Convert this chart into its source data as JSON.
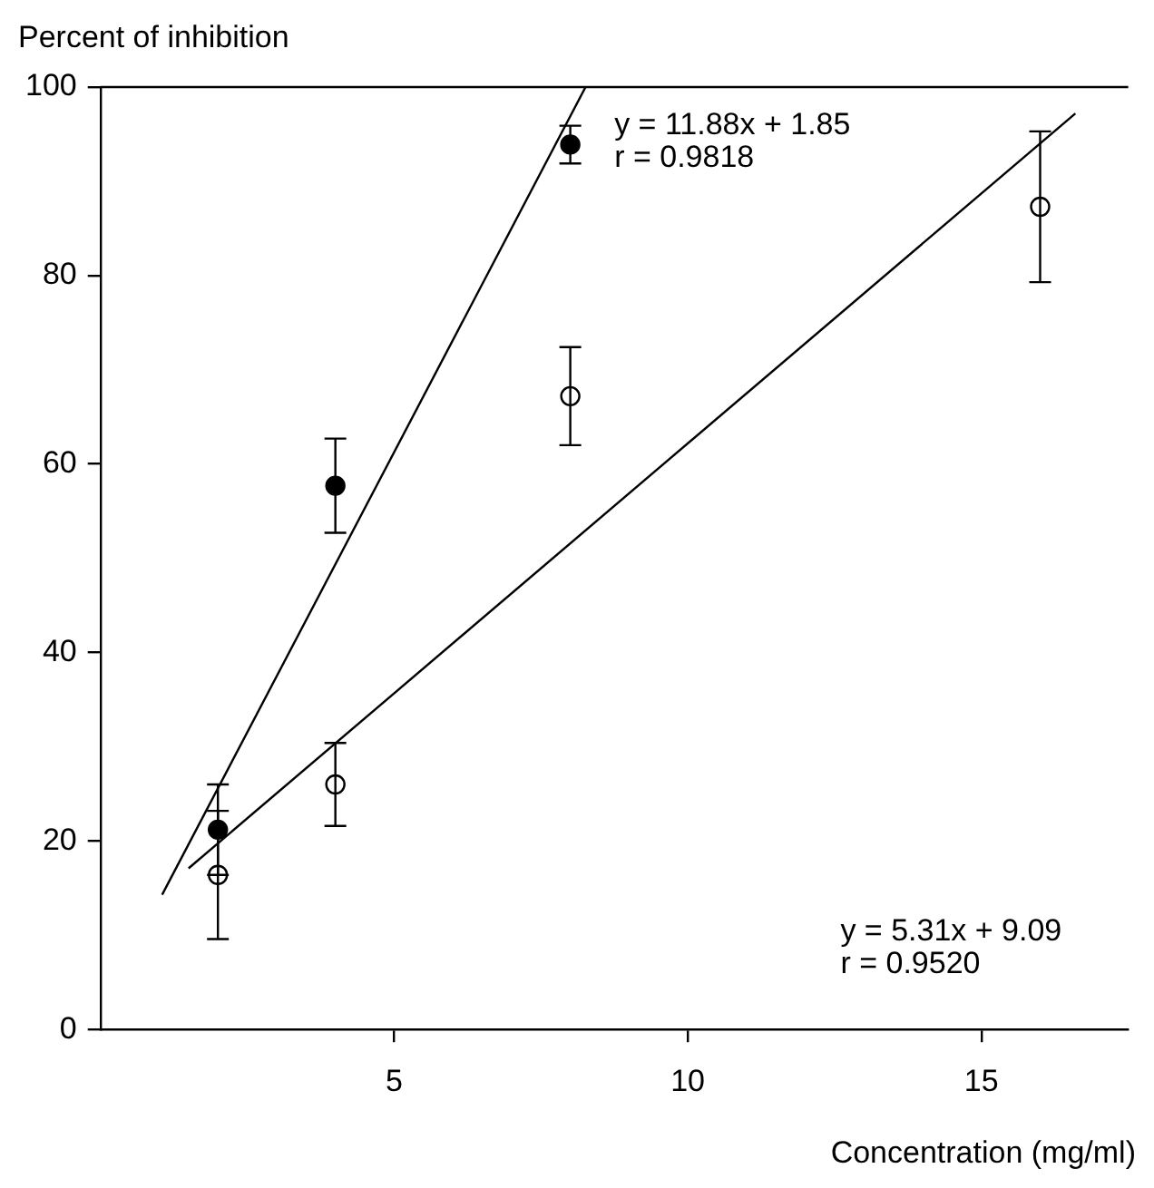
{
  "chart_data": {
    "type": "scatter",
    "ylabel": "Percent of inhibition",
    "xlabel": "Concentration (mg/ml)",
    "xlim": [
      0,
      17.5
    ],
    "xticks": [
      5,
      10,
      15
    ],
    "ylim": [
      0,
      100
    ],
    "yticks": [
      0,
      20,
      40,
      60,
      80,
      100
    ],
    "grid": false,
    "legend": false,
    "series": [
      {
        "color": "#000000",
        "marker": "circle",
        "x": [
          2,
          4,
          8
        ],
        "values": [
          21.2,
          57.7,
          93.9
        ],
        "errors": [
          4.8,
          5,
          2
        ]
      },
      {
        "color": "#000000",
        "marker": "circle",
        "x": [
          2,
          4,
          8,
          16
        ],
        "values": [
          16.4,
          26,
          67.2,
          87.3
        ],
        "errors": [
          6.8,
          4.4,
          5.2,
          8
        ]
      },
      {
        "type": "line",
        "marker": "none",
        "color": "#000000",
        "x": [
          1.05,
          8.26
        ],
        "values": [
          14.3,
          100
        ]
      },
      {
        "type": "line",
        "marker": "none",
        "color": "#000000",
        "x": [
          1.5,
          16.6
        ],
        "values": [
          17.1,
          97.2
        ]
      }
    ],
    "annotations": [
      "y = 11.88x + 1.85\nr = 0.9818",
      "y = 5.31x + 9.09\nr = 0.9520"
    ]
  }
}
